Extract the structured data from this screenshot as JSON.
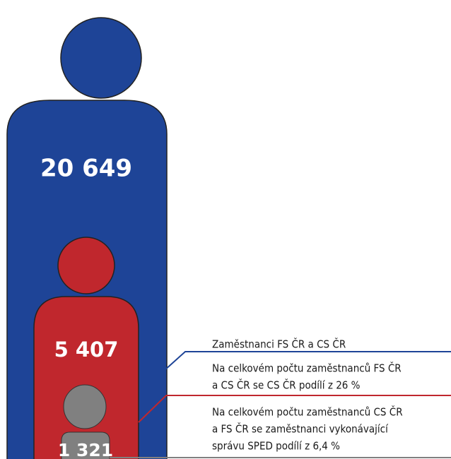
{
  "figures": [
    {
      "label": "20 649",
      "color": "#1e4497"
    },
    {
      "label": "5 407",
      "color": "#c0272d"
    },
    {
      "label": "1 321",
      "color": "#808080"
    }
  ],
  "legend": [
    {
      "lines": [
        "Zaměstnanci FS ČR a CS ČR"
      ],
      "color": "#1e4497"
    },
    {
      "lines": [
        "Na celkovém počtu zaměstnanců FS ČR",
        "a CS ČR se CS ČR podílí z 26 %"
      ],
      "color": "#c0272d"
    },
    {
      "lines": [
        "Na celkovém počtu zaměstnanců CS ČR",
        "a FS ČR se zaměstnanci vykonávající",
        "správu SPED podílí z 6,4 %"
      ],
      "color": "#808080"
    }
  ]
}
